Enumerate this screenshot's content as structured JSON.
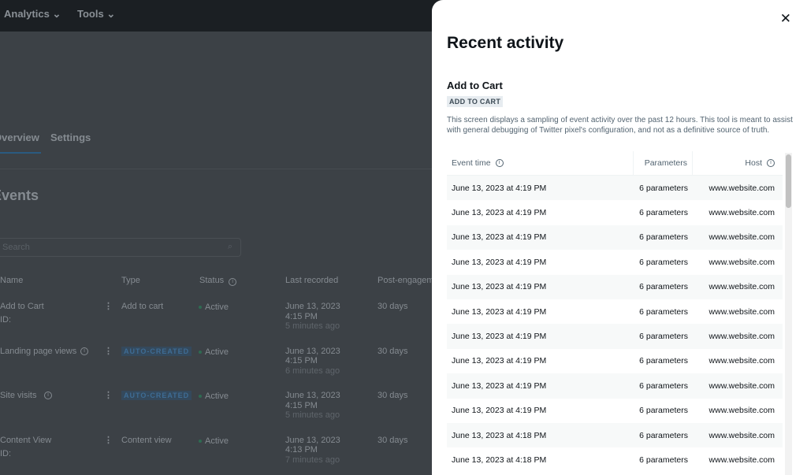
{
  "nav": {
    "items": [
      "Analytics",
      "Tools"
    ]
  },
  "background": {
    "tabs": [
      "Overview",
      "Settings"
    ],
    "section_title": "Events",
    "search_placeholder": "Search",
    "columns": [
      "Name",
      "Type",
      "Status",
      "Last recorded",
      "Post-engagement"
    ],
    "rows": [
      {
        "name": "Add to Cart",
        "id": "ID:",
        "type": "Add to cart",
        "type_badge": false,
        "status": "Active",
        "date": "June 13, 2023",
        "time": "4:15 PM",
        "ago": "5 minutes ago",
        "window": "30 days"
      },
      {
        "name": "Landing page views",
        "id": "",
        "type": "AUTO-CREATED",
        "type_badge": true,
        "status": "Active",
        "date": "June 13, 2023",
        "time": "4:15 PM",
        "ago": "6 minutes ago",
        "window": "30 days"
      },
      {
        "name": "Site visits",
        "id": "",
        "type": "AUTO-CREATED",
        "type_badge": true,
        "status": "Active",
        "date": "June 13, 2023",
        "time": "4:15 PM",
        "ago": "5 minutes ago",
        "window": "30 days"
      },
      {
        "name": "Content View",
        "id": "ID:",
        "type": "Content view",
        "type_badge": false,
        "status": "Active",
        "date": "June 13, 2023",
        "time": "4:13 PM",
        "ago": "7 minutes ago",
        "window": "30 days"
      }
    ]
  },
  "panel": {
    "title": "Recent activity",
    "event_name": "Add to Cart",
    "event_badge": "ADD TO CART",
    "description": "This screen displays a sampling of event activity over the past 12 hours. This tool is meant to assist with general debugging of Twitter pixel's configuration, and not as a definitive source of truth.",
    "columns": {
      "time": "Event time",
      "params": "Parameters",
      "host": "Host"
    },
    "rows": [
      {
        "time": "June 13, 2023 at 4:19 PM",
        "params": "6 parameters",
        "host": "www.website.com"
      },
      {
        "time": "June 13, 2023 at 4:19 PM",
        "params": "6 parameters",
        "host": "www.website.com"
      },
      {
        "time": "June 13, 2023 at 4:19 PM",
        "params": "6 parameters",
        "host": "www.website.com"
      },
      {
        "time": "June 13, 2023 at 4:19 PM",
        "params": "6 parameters",
        "host": "www.website.com"
      },
      {
        "time": "June 13, 2023 at 4:19 PM",
        "params": "6 parameters",
        "host": "www.website.com"
      },
      {
        "time": "June 13, 2023 at 4:19 PM",
        "params": "6 parameters",
        "host": "www.website.com"
      },
      {
        "time": "June 13, 2023 at 4:19 PM",
        "params": "6 parameters",
        "host": "www.website.com"
      },
      {
        "time": "June 13, 2023 at 4:19 PM",
        "params": "6 parameters",
        "host": "www.website.com"
      },
      {
        "time": "June 13, 2023 at 4:19 PM",
        "params": "6 parameters",
        "host": "www.website.com"
      },
      {
        "time": "June 13, 2023 at 4:19 PM",
        "params": "6 parameters",
        "host": "www.website.com"
      },
      {
        "time": "June 13, 2023 at 4:18 PM",
        "params": "6 parameters",
        "host": "www.website.com"
      },
      {
        "time": "June 13, 2023 at 4:18 PM",
        "params": "6 parameters",
        "host": "www.website.com"
      }
    ]
  }
}
